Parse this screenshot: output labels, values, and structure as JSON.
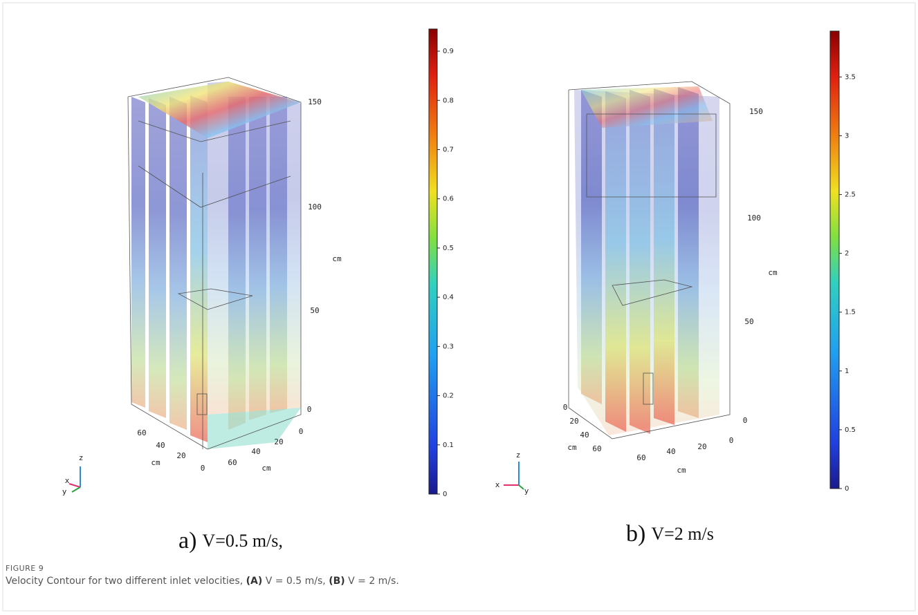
{
  "figure": {
    "label": "FIGURE 9",
    "caption": [
      "Velocity Contour for two different inlet velocities, ",
      "(A)",
      " V = 0.5 m/s, ",
      "(B)",
      " V = 2 m/s."
    ]
  },
  "panels": [
    {
      "letter": "a)",
      "caption": "V=0.5 m/s,",
      "axis_z": {
        "labels": [
          150,
          100,
          50,
          0
        ],
        "unit": "cm"
      },
      "axis_y": {
        "labels": [
          60,
          40,
          20,
          0
        ],
        "unit": "cm"
      },
      "axis_x": {
        "labels": [
          0,
          20,
          40,
          60
        ],
        "unit": "cm"
      },
      "triad": [
        "z",
        "x",
        "y"
      ],
      "colorbar": {
        "lim": [
          0,
          0.945
        ],
        "ticks": [
          0,
          0.1,
          0.2,
          0.3,
          0.4,
          0.5,
          0.6,
          0.7,
          0.8,
          0.9
        ]
      }
    },
    {
      "letter": "b)",
      "caption": "V=2 m/s",
      "axis_z": {
        "labels": [
          150,
          100,
          50,
          0
        ],
        "unit": "cm"
      },
      "axis_y": {
        "labels": [
          0,
          20,
          40,
          60
        ],
        "unit": "cm"
      },
      "axis_x": {
        "labels": [
          60,
          40,
          20,
          0
        ],
        "unit": "cm"
      },
      "triad": [
        "z",
        "x",
        "y"
      ],
      "colorbar": {
        "lim": [
          0,
          3.89
        ],
        "ticks": [
          0,
          0.5,
          1,
          1.5,
          2,
          2.5,
          3,
          3.5
        ]
      }
    }
  ]
}
